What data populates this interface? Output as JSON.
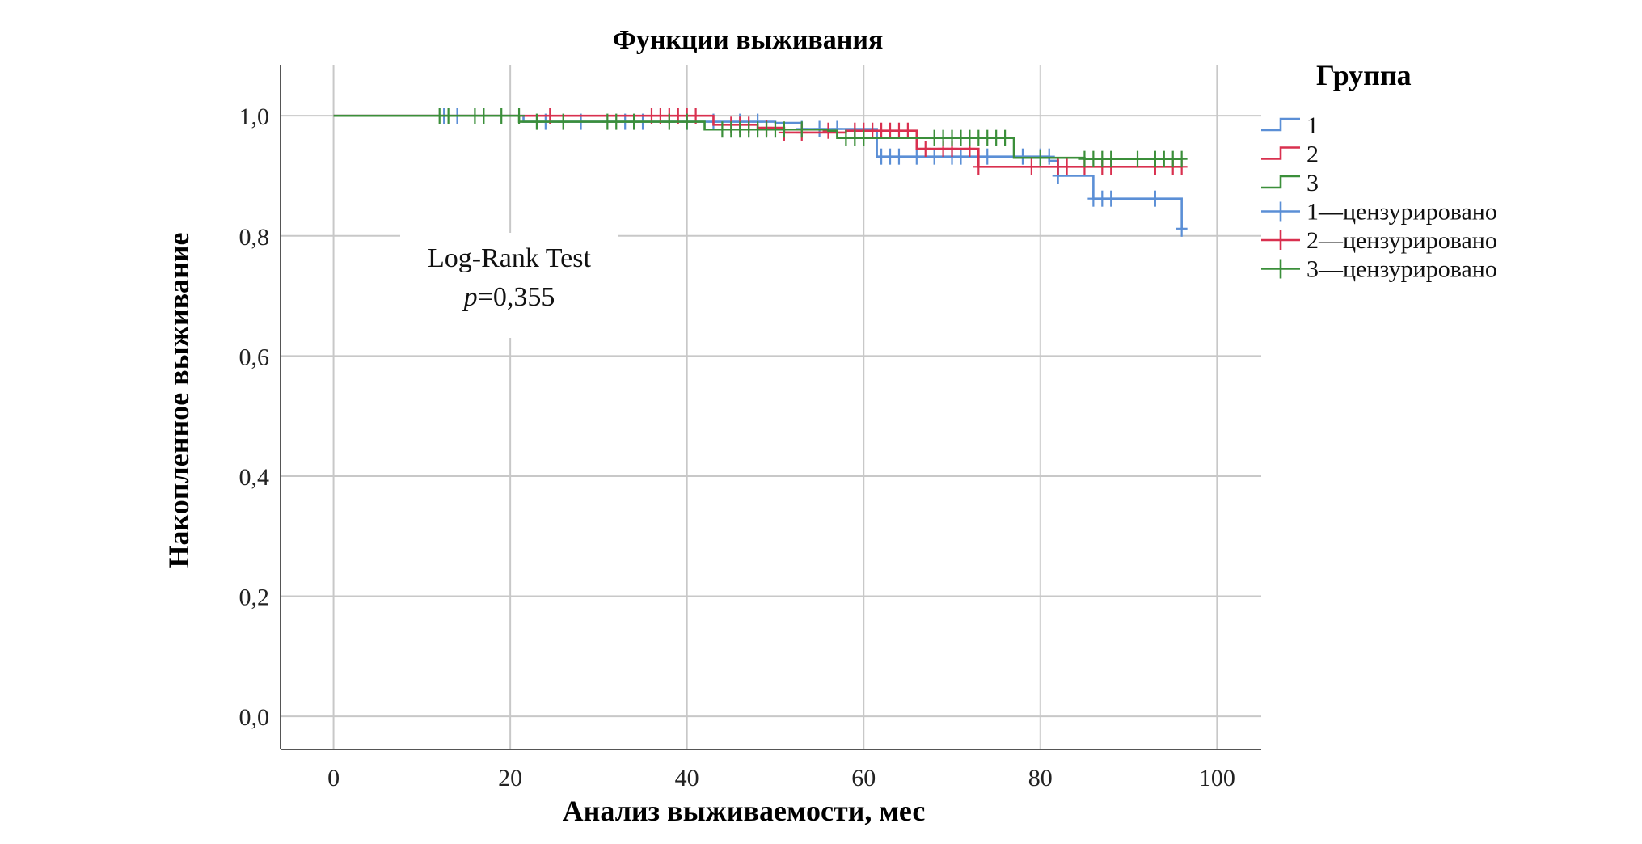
{
  "chart_data": {
    "type": "line",
    "title": "Функции выживания",
    "xlabel": "Анализ выживаемости, мес",
    "ylabel": "Накопленное выживание",
    "xlim": [
      -6,
      105
    ],
    "ylim": [
      -0.055,
      1.085
    ],
    "x_ticks": [
      0,
      20,
      40,
      60,
      80,
      100
    ],
    "x_tick_labels": [
      "0",
      "20",
      "40",
      "60",
      "80",
      "100"
    ],
    "y_ticks": [
      0.0,
      0.2,
      0.4,
      0.6,
      0.8,
      1.0
    ],
    "y_tick_labels": [
      "0,0",
      "0,2",
      "0,4",
      "0,6",
      "0,8",
      "1,0"
    ],
    "grid": true,
    "legend_title": "Группа",
    "legend_position": "right",
    "annotation": {
      "line1": "Log-Rank Test",
      "p_italic": "p",
      "p_rest": "=0,355"
    },
    "series": [
      {
        "name": "1",
        "color": "#5b8fd6",
        "steps": [
          [
            0,
            1.0
          ],
          [
            21.5,
            0.99
          ],
          [
            50,
            0.988
          ],
          [
            53,
            0.978
          ],
          [
            61.5,
            0.932
          ],
          [
            81,
            0.925
          ],
          [
            82,
            0.9
          ],
          [
            86,
            0.862
          ],
          [
            96,
            0.812
          ]
        ],
        "end_x": 96,
        "censored": [
          [
            12.5,
            1.0
          ],
          [
            14,
            1.0
          ],
          [
            24,
            0.99
          ],
          [
            28,
            0.99
          ],
          [
            33,
            0.99
          ],
          [
            35,
            0.99
          ],
          [
            40,
            0.99
          ],
          [
            43,
            0.99
          ],
          [
            46,
            0.99
          ],
          [
            48,
            0.99
          ],
          [
            53,
            0.978
          ],
          [
            55,
            0.978
          ],
          [
            57,
            0.978
          ],
          [
            62,
            0.932
          ],
          [
            63,
            0.932
          ],
          [
            64,
            0.932
          ],
          [
            66,
            0.932
          ],
          [
            68,
            0.932
          ],
          [
            70,
            0.932
          ],
          [
            71,
            0.932
          ],
          [
            74,
            0.932
          ],
          [
            78,
            0.932
          ],
          [
            80,
            0.932
          ],
          [
            81,
            0.932
          ],
          [
            82,
            0.9
          ],
          [
            86,
            0.862
          ],
          [
            87,
            0.862
          ],
          [
            88,
            0.862
          ],
          [
            93,
            0.862
          ],
          [
            96,
            0.812
          ]
        ],
        "censored_name": "1—цензурировано"
      },
      {
        "name": "2",
        "color": "#d9304f",
        "steps": [
          [
            0,
            1.0
          ],
          [
            24,
            1.0
          ],
          [
            36,
            1.0
          ],
          [
            43,
            0.985
          ],
          [
            48,
            0.98
          ],
          [
            51,
            0.972
          ],
          [
            55,
            0.972
          ],
          [
            58,
            0.975
          ],
          [
            66,
            0.945
          ],
          [
            73,
            0.915
          ],
          [
            96,
            0.915
          ]
        ],
        "end_x": 96,
        "censored": [
          [
            24.5,
            1.0
          ],
          [
            36,
            1.0
          ],
          [
            37,
            1.0
          ],
          [
            38,
            1.0
          ],
          [
            39,
            1.0
          ],
          [
            40,
            1.0
          ],
          [
            41,
            1.0
          ],
          [
            45,
            0.985
          ],
          [
            46,
            0.985
          ],
          [
            47,
            0.985
          ],
          [
            49,
            0.98
          ],
          [
            51,
            0.972
          ],
          [
            53,
            0.972
          ],
          [
            56,
            0.975
          ],
          [
            59,
            0.975
          ],
          [
            60,
            0.975
          ],
          [
            61,
            0.975
          ],
          [
            62,
            0.975
          ],
          [
            63,
            0.975
          ],
          [
            64,
            0.975
          ],
          [
            65,
            0.975
          ],
          [
            67,
            0.945
          ],
          [
            69,
            0.945
          ],
          [
            70,
            0.945
          ],
          [
            72,
            0.945
          ],
          [
            73,
            0.915
          ],
          [
            79,
            0.915
          ],
          [
            82,
            0.915
          ],
          [
            83,
            0.915
          ],
          [
            85,
            0.915
          ],
          [
            87,
            0.915
          ],
          [
            88,
            0.915
          ],
          [
            93,
            0.915
          ],
          [
            95,
            0.915
          ],
          [
            96,
            0.915
          ]
        ],
        "censored_name": "2—цензурировано"
      },
      {
        "name": "3",
        "color": "#3b8f3a",
        "steps": [
          [
            0,
            1.0
          ],
          [
            21,
            0.99
          ],
          [
            36,
            0.99
          ],
          [
            42,
            0.977
          ],
          [
            56,
            0.975
          ],
          [
            57,
            0.963
          ],
          [
            77,
            0.93
          ],
          [
            85,
            0.928
          ],
          [
            96,
            0.928
          ]
        ],
        "end_x": 96,
        "censored": [
          [
            12,
            1.0
          ],
          [
            13,
            1.0
          ],
          [
            16,
            1.0
          ],
          [
            17,
            1.0
          ],
          [
            19,
            1.0
          ],
          [
            21,
            1.0
          ],
          [
            23,
            0.99
          ],
          [
            26,
            0.99
          ],
          [
            31,
            0.99
          ],
          [
            32,
            0.99
          ],
          [
            34,
            0.99
          ],
          [
            38,
            0.99
          ],
          [
            40,
            0.99
          ],
          [
            44,
            0.977
          ],
          [
            45,
            0.977
          ],
          [
            46,
            0.977
          ],
          [
            47,
            0.977
          ],
          [
            48,
            0.977
          ],
          [
            49,
            0.977
          ],
          [
            50,
            0.977
          ],
          [
            51,
            0.977
          ],
          [
            53,
            0.977
          ],
          [
            58,
            0.963
          ],
          [
            59,
            0.963
          ],
          [
            60,
            0.963
          ],
          [
            68,
            0.963
          ],
          [
            69,
            0.963
          ],
          [
            70,
            0.963
          ],
          [
            71,
            0.963
          ],
          [
            72,
            0.963
          ],
          [
            73,
            0.963
          ],
          [
            74,
            0.963
          ],
          [
            75,
            0.963
          ],
          [
            76,
            0.963
          ],
          [
            80,
            0.93
          ],
          [
            85,
            0.928
          ],
          [
            86,
            0.928
          ],
          [
            87,
            0.928
          ],
          [
            88,
            0.928
          ],
          [
            91,
            0.928
          ],
          [
            93,
            0.928
          ],
          [
            94,
            0.928
          ],
          [
            95,
            0.928
          ],
          [
            96,
            0.928
          ]
        ],
        "censored_name": "3—цензурировано"
      }
    ]
  }
}
